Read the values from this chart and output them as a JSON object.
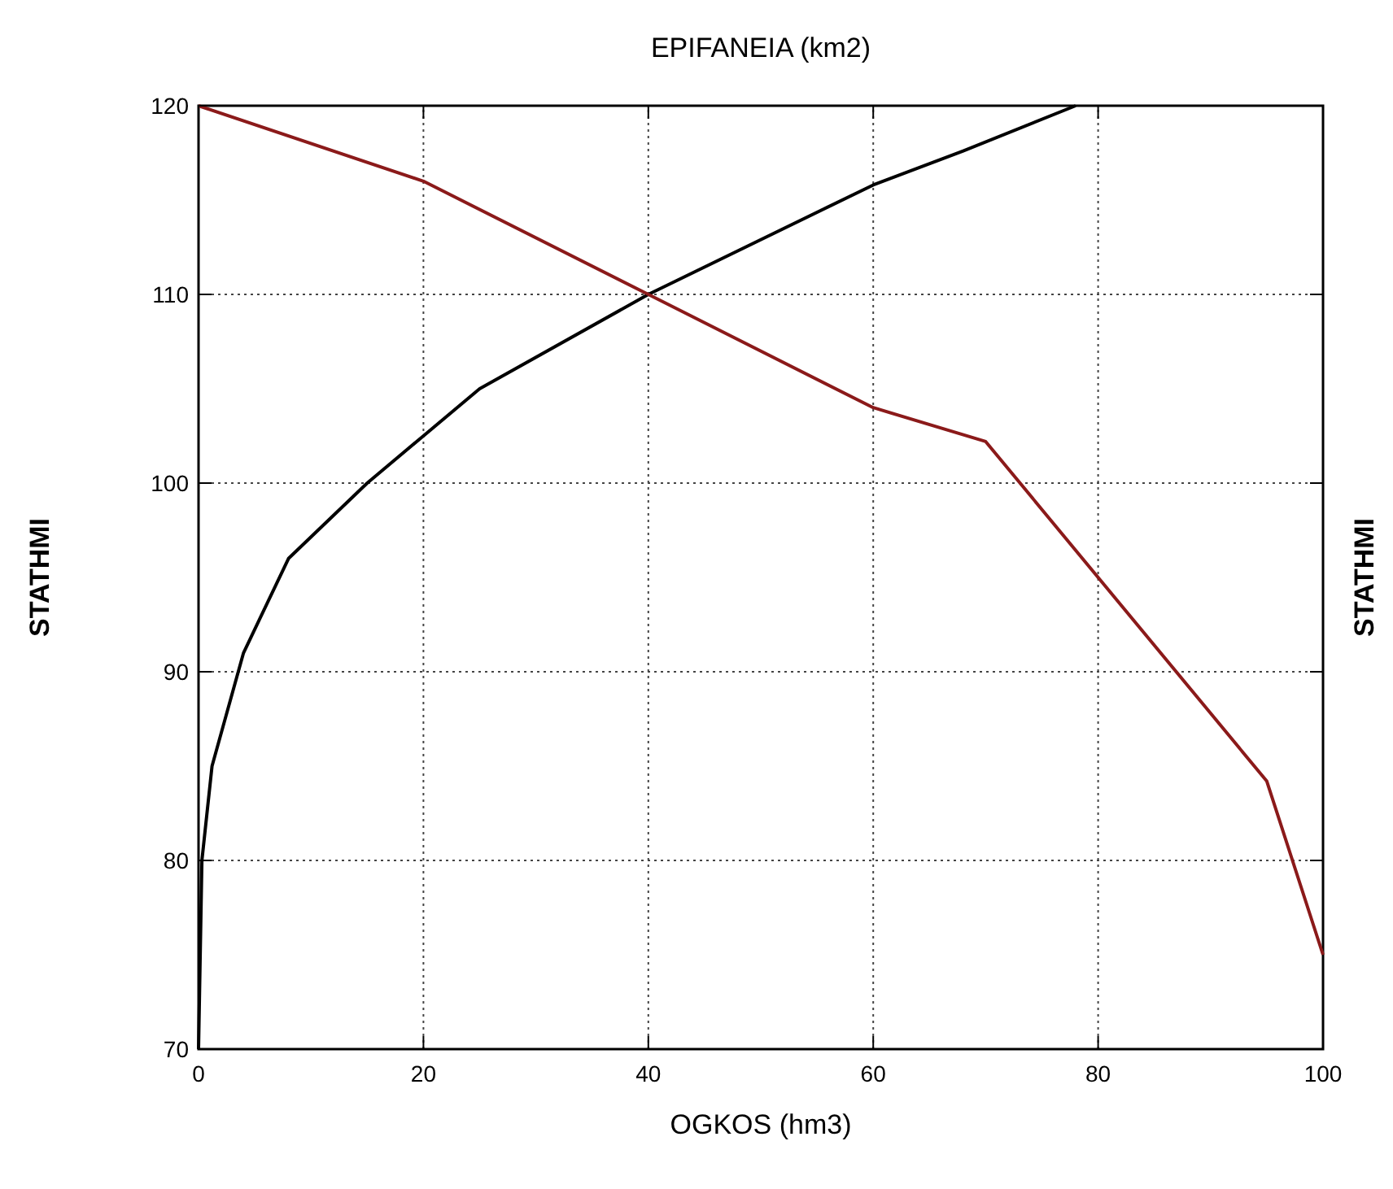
{
  "chart_data": {
    "type": "line",
    "x2label": "EPIFANEIA (km2)",
    "xlabel": "OGKOS (hm3)",
    "ylabel": "STATHMI",
    "y2label": "STATHMI",
    "xlim": [
      0,
      100
    ],
    "xticks": [
      0,
      20,
      40,
      60,
      80,
      100
    ],
    "ylim": [
      70,
      120
    ],
    "yticks": [
      70,
      80,
      90,
      100,
      110,
      120
    ],
    "grid": true,
    "line_style": "solid",
    "marker": "none",
    "series": [
      {
        "color": "#000000",
        "x": [
          0,
          0.3,
          1.2,
          4,
          8,
          15,
          20,
          25,
          40,
          60,
          68,
          78
        ],
        "values": [
          70,
          80,
          85,
          91,
          96,
          100,
          102.5,
          105,
          110,
          115.8,
          117.6,
          120
        ]
      },
      {
        "color": "#8b1a1a",
        "x": [
          0,
          20,
          40,
          60,
          70,
          95,
          100
        ],
        "values": [
          120,
          116,
          110,
          104,
          102.2,
          84.2,
          75
        ]
      }
    ]
  }
}
